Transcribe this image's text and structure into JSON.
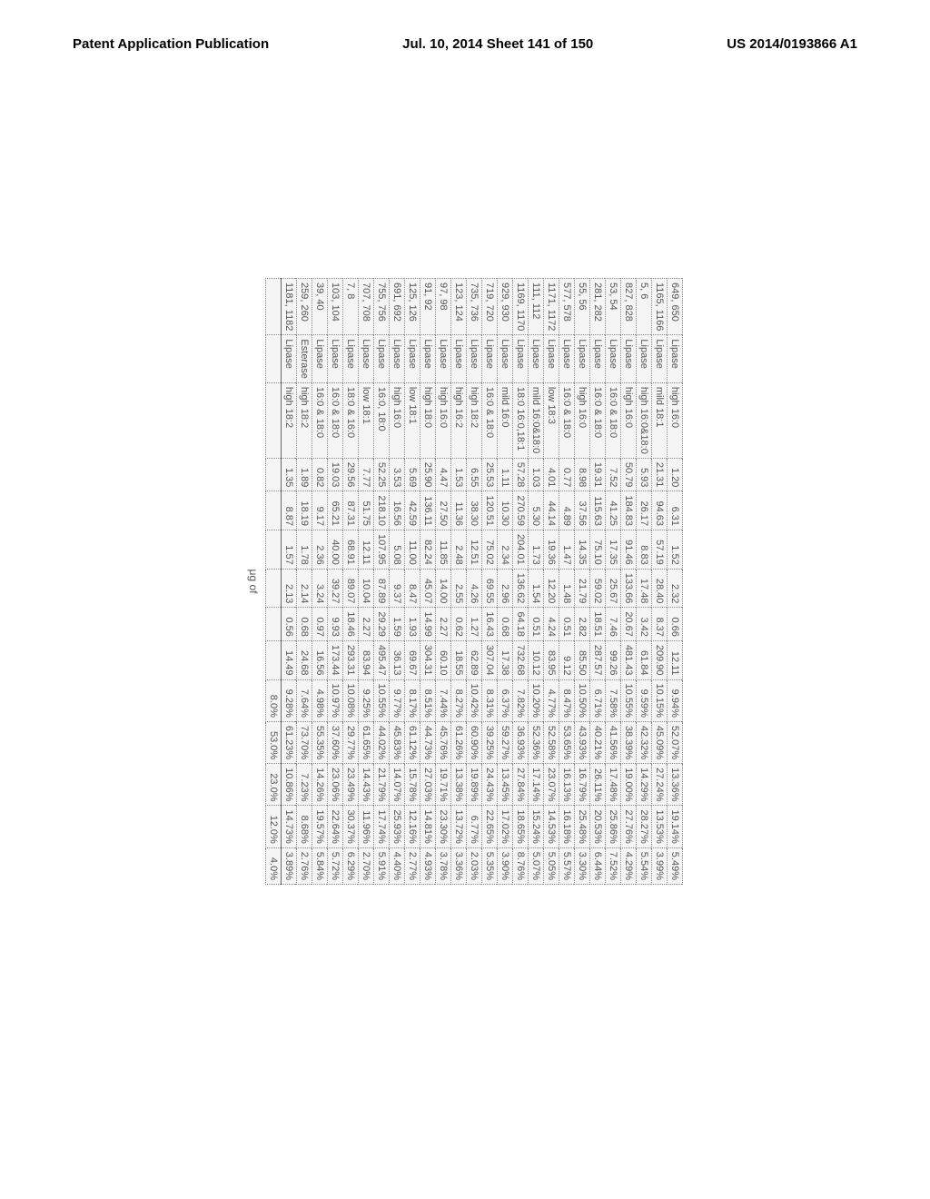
{
  "header": {
    "left": "Patent Application Publication",
    "center": "Jul. 10, 2014  Sheet 141 of 150",
    "right": "US 2014/0193866 A1"
  },
  "caption": "μg of",
  "table": {
    "header_row": [
      "649, 650",
      "Lipase",
      "high 16:0",
      "1.20",
      "6.31",
      "1.52",
      "2.32",
      "0.66",
      "12.11",
      "9.94%",
      "52.07%",
      "13.36%",
      "19.14%",
      "5.49%"
    ],
    "rows": [
      [
        "1165, 1166",
        "Lipase",
        "mild 18:1",
        "21.31",
        "94.63",
        "57.19",
        "28.40",
        "8.37",
        "209.90",
        "10.15%",
        "45.09%",
        "27.24%",
        "13.53%",
        "3.99%"
      ],
      [
        "5, 6",
        "Lipase",
        "high 16:0&18:0",
        "5.93",
        "26.17",
        "8.83",
        "17.48",
        "3.42",
        "61.84",
        "9.59%",
        "42.32%",
        "14.29%",
        "28.27%",
        "5.54%"
      ],
      [
        "827, 828",
        "Lipase",
        "high 16:0",
        "50.79",
        "184.83",
        "91.46",
        "133.66",
        "20.67",
        "481.43",
        "10.55%",
        "38.39%",
        "19.00%",
        "27.76%",
        "4.29%"
      ],
      [
        "53, 54",
        "Lipase",
        "16:0 & 18:0",
        "7.52",
        "41.25",
        "17.35",
        "25.67",
        "7.46",
        "99.26",
        "7.58%",
        "41.56%",
        "17.48%",
        "25.86%",
        "7.52%"
      ],
      [
        "281, 282",
        "Lipase",
        "16:0 & 18:0",
        "19.31",
        "115.63",
        "75.10",
        "59.02",
        "18.51",
        "287.57",
        "6.71%",
        "40.21%",
        "26.11%",
        "20.53%",
        "6.44%"
      ],
      [
        "55, 56",
        "Lipase",
        "high 16:0",
        "8.98",
        "37.56",
        "14.35",
        "21.79",
        "2.82",
        "85.50",
        "10.50%",
        "43.93%",
        "16.79%",
        "25.48%",
        "3.30%"
      ],
      [
        "577, 578",
        "Lipase",
        "16:0 & 18:0",
        "0.77",
        "4.89",
        "1.47",
        "1.48",
        "0.51",
        "9.12",
        "8.47%",
        "53.65%",
        "16.13%",
        "16.18%",
        "5.57%"
      ],
      [
        "1171, 1172",
        "Lipase",
        "low 18:3",
        "4.01",
        "44.14",
        "19.36",
        "12.20",
        "4.24",
        "83.95",
        "4.77%",
        "52.58%",
        "23.07%",
        "14.53%",
        "5.05%"
      ],
      [
        "111, 112",
        "Lipase",
        "mild 16:0&18:0",
        "1.03",
        "5.30",
        "1.73",
        "1.54",
        "0.51",
        "10.12",
        "10.20%",
        "52.36%",
        "17.14%",
        "15.24%",
        "5.07%"
      ],
      [
        "1169, 1170",
        "Lipase",
        "18:0 16:0,18:1",
        "57.28",
        "270.59",
        "204.01",
        "136.62",
        "64.18",
        "732.68",
        "7.82%",
        "36.93%",
        "27.84%",
        "18.65%",
        "8.76%"
      ],
      [
        "929, 930",
        "Lipase",
        "mild 16:0",
        "1.11",
        "10.30",
        "2.34",
        "2.96",
        "0.68",
        "17.38",
        "6.37%",
        "59.27%",
        "13.45%",
        "17.02%",
        "3.90%"
      ],
      [
        "719, 720",
        "Lipase",
        "16:0 & 18:0",
        "25.53",
        "120.51",
        "75.02",
        "69.55",
        "16.43",
        "307.04",
        "8.31%",
        "39.25%",
        "24.43%",
        "22.65%",
        "5.35%"
      ],
      [
        "735, 736",
        "Lipase",
        "high 18:2",
        "6.55",
        "38.30",
        "12.51",
        "4.26",
        "1.27",
        "62.89",
        "10.42%",
        "60.90%",
        "19.89%",
        "6.77%",
        "2.03%"
      ],
      [
        "123, 124",
        "Lipase",
        "high 16:2",
        "1.53",
        "11.36",
        "2.48",
        "2.55",
        "0.62",
        "18.55",
        "8.27%",
        "61.26%",
        "13.38%",
        "13.72%",
        "3.36%"
      ],
      [
        "97, 98",
        "Lipase",
        "high 16:0",
        "4.47",
        "27.50",
        "11.85",
        "14.00",
        "2.27",
        "60.10",
        "7.44%",
        "45.76%",
        "19.71%",
        "23.30%",
        "3.78%"
      ],
      [
        "91, 92",
        "Lipase",
        "high 18:0",
        "25.90",
        "136.11",
        "82.24",
        "45.07",
        "14.99",
        "304.31",
        "8.51%",
        "44.73%",
        "27.03%",
        "14.81%",
        "4.93%"
      ],
      [
        "125, 126",
        "Lipase",
        "low 18:1",
        "5.69",
        "42.59",
        "11.00",
        "8.47",
        "1.93",
        "69.67",
        "8.17%",
        "61.12%",
        "15.78%",
        "12.16%",
        "2.77%"
      ],
      [
        "691, 692",
        "Lipase",
        "high 16:0",
        "3.53",
        "16.56",
        "5.08",
        "9.37",
        "1.59",
        "36.13",
        "9.77%",
        "45.83%",
        "14.07%",
        "25.93%",
        "4.40%"
      ],
      [
        "755, 756",
        "Lipase",
        "16:0, 18:0",
        "52.25",
        "218.10",
        "107.95",
        "87.89",
        "29.29",
        "495.47",
        "10.55%",
        "44.02%",
        "21.79%",
        "17.74%",
        "5.91%"
      ],
      [
        "707, 708",
        "Lipase",
        "low 18:1",
        "7.77",
        "51.75",
        "12.11",
        "10.04",
        "2.27",
        "83.94",
        "9.25%",
        "61.65%",
        "14.43%",
        "11.96%",
        "2.70%"
      ],
      [
        "7, 8",
        "Lipase",
        "18:0 & 16:0",
        "29.56",
        "87.31",
        "68.91",
        "89.07",
        "18.46",
        "293.31",
        "10.08%",
        "29.77%",
        "23.49%",
        "30.37%",
        "6.29%"
      ],
      [
        "103, 104",
        "Lipase",
        "16:0 & 18:0",
        "19.03",
        "65.21",
        "40.00",
        "39.27",
        "9.93",
        "173.44",
        "10.97%",
        "37.60%",
        "23.06%",
        "22.64%",
        "5.72%"
      ],
      [
        "39, 40",
        "Lipase",
        "16:0 & 18:0",
        "0.82",
        "9.17",
        "2.36",
        "3.24",
        "0.97",
        "16.56",
        "4.98%",
        "55.35%",
        "14.26%",
        "19.57%",
        "5.84%"
      ],
      [
        "259, 260",
        "Esterase",
        "high 18:2",
        "1.89",
        "18.19",
        "1.78",
        "2.14",
        "0.68",
        "24.68",
        "7.64%",
        "73.70%",
        "7.23%",
        "8.68%",
        "2.76%"
      ],
      [
        "1181, 1182",
        "Lipase",
        "high 18:2",
        "1.35",
        "8.87",
        "1.57",
        "2.13",
        "0.56",
        "14.49",
        "9.28%",
        "61.23%",
        "10.86%",
        "14.73%",
        "3.89%"
      ]
    ],
    "footer_row": [
      "",
      "",
      "",
      "",
      "",
      "",
      "",
      "",
      "",
      "8.0%",
      "53.0%",
      "23.0%",
      "12.0%",
      "4.0%"
    ],
    "col_align": [
      "l",
      "l",
      "l",
      "r",
      "r",
      "r",
      "r",
      "r",
      "r",
      "r",
      "r",
      "r",
      "r",
      "r"
    ]
  }
}
